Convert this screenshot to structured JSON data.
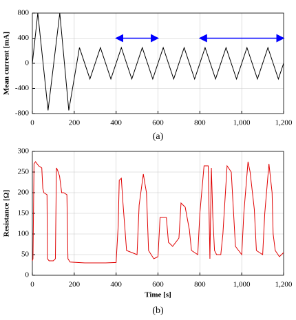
{
  "chart_data": [
    {
      "type": "line",
      "caption": "(a)",
      "ylabel": "Mean current [mA]",
      "x": [
        0,
        26,
        75,
        131,
        174,
        225,
        275,
        325,
        375,
        425,
        475,
        525,
        575,
        625,
        675,
        725,
        775,
        825,
        875,
        925,
        975,
        1025,
        1075,
        1125,
        1175,
        1200
      ],
      "series": [
        {
          "color": "#000000",
          "values": [
            0,
            800,
            -750,
            800,
            -750,
            250,
            -250,
            250,
            -250,
            250,
            -250,
            250,
            -250,
            250,
            -250,
            250,
            -250,
            250,
            -250,
            250,
            -250,
            250,
            -250,
            250,
            -250,
            0
          ]
        }
      ],
      "xlim": [
        0,
        1200
      ],
      "ylim": [
        -800,
        800
      ],
      "xticks": [
        0,
        200,
        400,
        600,
        800,
        {
          "value": 1000,
          "label": "1,000"
        },
        {
          "value": 1200,
          "label": "1,200"
        }
      ],
      "yticks": [
        -800,
        -400,
        0,
        400,
        800
      ],
      "grid": true,
      "arrows": [
        {
          "x0": 400,
          "x1": 600,
          "y": 400
        },
        {
          "x0": 800,
          "x1": 1200,
          "y": 400
        }
      ],
      "arrow_color": "#0000ff"
    },
    {
      "type": "line",
      "caption": "(b)",
      "xlabel": "Time [s]",
      "ylabel": "Resistance [Ω]",
      "x": [
        0,
        3,
        8,
        15,
        30,
        45,
        50,
        55,
        70,
        72,
        80,
        100,
        110,
        115,
        120,
        130,
        140,
        150,
        165,
        170,
        180,
        250,
        350,
        400,
        410,
        415,
        425,
        432,
        450,
        500,
        510,
        530,
        545,
        555,
        580,
        600,
        610,
        640,
        650,
        670,
        700,
        710,
        730,
        750,
        760,
        790,
        800,
        820,
        840,
        848,
        855,
        862,
        870,
        880,
        900,
        910,
        930,
        950,
        960,
        970,
        1000,
        1010,
        1030,
        1040,
        1060,
        1070,
        1100,
        1110,
        1130,
        1145,
        1150,
        1160,
        1180,
        1200
      ],
      "series": [
        {
          "color": "#e00000",
          "values": [
            35,
            40,
            270,
            275,
            265,
            260,
            210,
            200,
            195,
            40,
            35,
            35,
            40,
            260,
            255,
            240,
            200,
            200,
            195,
            40,
            32,
            30,
            30,
            31,
            120,
            230,
            235,
            180,
            60,
            50,
            170,
            245,
            200,
            60,
            40,
            45,
            140,
            140,
            80,
            70,
            90,
            175,
            165,
            110,
            60,
            50,
            150,
            265,
            265,
            40,
            260,
            140,
            60,
            50,
            50,
            100,
            265,
            250,
            160,
            70,
            50,
            150,
            275,
            250,
            160,
            60,
            50,
            150,
            270,
            200,
            100,
            60,
            45,
            55
          ]
        }
      ],
      "xlim": [
        0,
        1200
      ],
      "ylim": [
        0,
        300
      ],
      "xticks": [
        0,
        200,
        400,
        600,
        800,
        {
          "value": 1000,
          "label": "1,000"
        },
        {
          "value": 1200,
          "label": "1,200"
        }
      ],
      "yticks": [
        0,
        50,
        100,
        150,
        200,
        250,
        300
      ],
      "grid": true
    }
  ]
}
